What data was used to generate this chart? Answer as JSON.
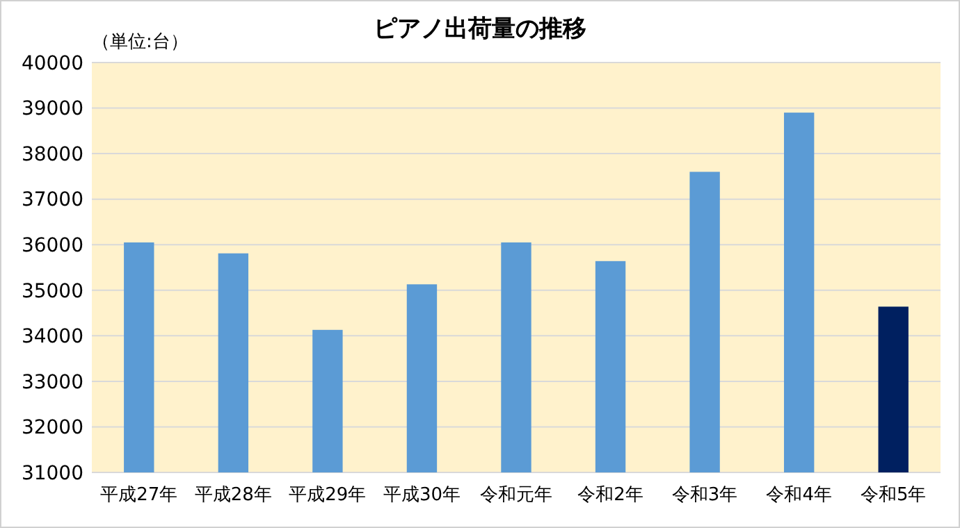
{
  "chart_data": {
    "type": "bar",
    "title": "ピアノ出荷量の推移",
    "annotations": [
      "（単位:台）"
    ],
    "categories": [
      "平成27年",
      "平成28年",
      "平成29年",
      "平成30年",
      "令和元年",
      "令和2年",
      "令和3年",
      "令和4年",
      "令和5年"
    ],
    "values": [
      36050,
      35810,
      34130,
      35130,
      36050,
      35640,
      37600,
      38900,
      34640
    ],
    "colors": [
      "#5b9bd5",
      "#5b9bd5",
      "#5b9bd5",
      "#5b9bd5",
      "#5b9bd5",
      "#5b9bd5",
      "#5b9bd5",
      "#5b9bd5",
      "#002060"
    ],
    "ylim": [
      31000,
      40000
    ],
    "yticks": [
      31000,
      32000,
      33000,
      34000,
      35000,
      36000,
      37000,
      38000,
      39000,
      40000
    ],
    "grid": "y"
  }
}
